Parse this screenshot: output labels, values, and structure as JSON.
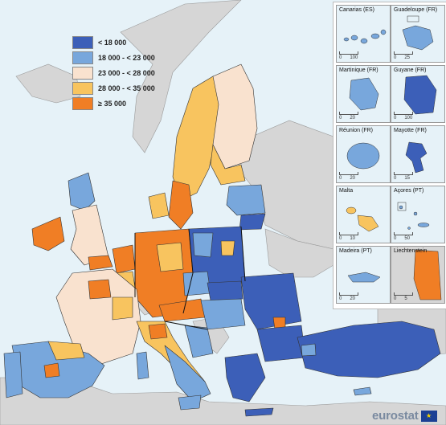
{
  "legend": {
    "items": [
      {
        "label": "< 18 000",
        "color": "#3c5fb8"
      },
      {
        "label": "18 000 - < 23 000",
        "color": "#78a7dc"
      },
      {
        "label": "23 000 - < 28 000",
        "color": "#f9e2cf"
      },
      {
        "label": "28 000 - < 35 000",
        "color": "#f8c45f"
      },
      {
        "label": "≥ 35 000",
        "color": "#f07e25"
      }
    ]
  },
  "colors": {
    "sea": "#e6f2f8",
    "non_eu_land": "#d6d6d6",
    "border": "#333333"
  },
  "insets": [
    {
      "title": "Canarias (ES)",
      "scale_left": "0",
      "scale_right": "100",
      "class": "18 000 - < 23 000"
    },
    {
      "title": "Guadeloupe (FR)",
      "scale_left": "0",
      "scale_right": "25",
      "class": "18 000 - < 23 000"
    },
    {
      "title": "Martinique (FR)",
      "scale_left": "0",
      "scale_right": "20",
      "class": "18 000 - < 23 000"
    },
    {
      "title": "Guyane (FR)",
      "scale_left": "0",
      "scale_right": "100",
      "class": "< 18 000"
    },
    {
      "title": "Réunion (FR)",
      "scale_left": "0",
      "scale_right": "20",
      "class": "18 000 - < 23 000"
    },
    {
      "title": "Mayotte (FR)",
      "scale_left": "0",
      "scale_right": "15",
      "class": "< 18 000"
    },
    {
      "title": "Malta",
      "scale_left": "0",
      "scale_right": "10",
      "class": "28 000 - < 35 000"
    },
    {
      "title": "Açores (PT)",
      "scale_left": "0",
      "scale_right": "50",
      "class": "18 000 - < 23 000"
    },
    {
      "title": "Madeira (PT)",
      "scale_left": "0",
      "scale_right": "20",
      "class": "18 000 - < 23 000"
    },
    {
      "title": "Liechtenstein",
      "scale_left": "0",
      "scale_right": "5",
      "class": "≥ 35 000"
    }
  ],
  "branding": {
    "logo_text": "eurostat",
    "flag_stars": "★"
  }
}
